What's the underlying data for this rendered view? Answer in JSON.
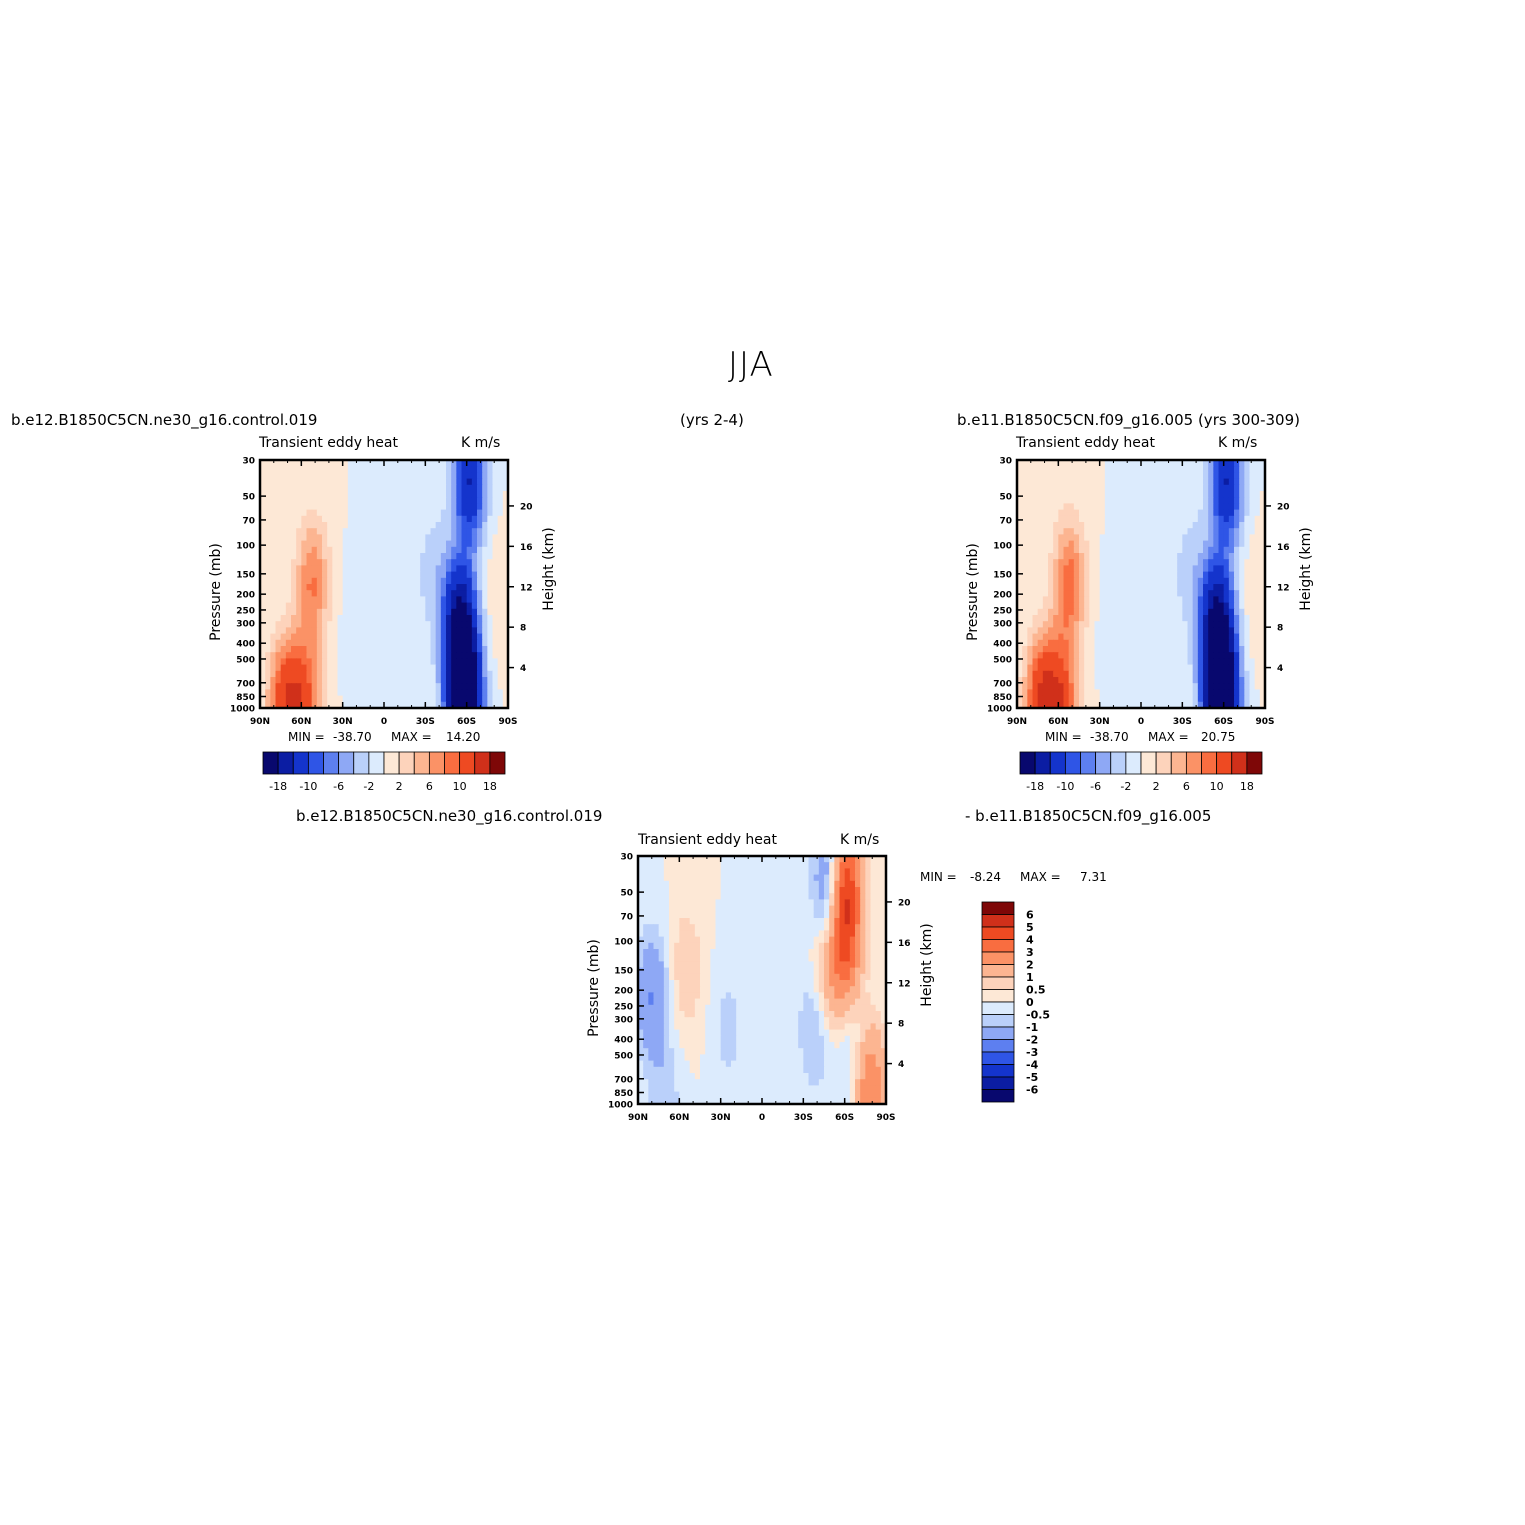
{
  "page": {
    "suptitle": "JJA"
  },
  "labels": {
    "case1": "b.e12.B1850C5CN.ne30_g16.control.019",
    "years1": "(yrs 2-4)",
    "case2": "b.e11.B1850C5CN.f09_g16.005 (yrs 300-309)",
    "diff_case1": "b.e12.B1850C5CN.ne30_g16.control.019",
    "diff_case2": "- b.e11.B1850C5CN.f09_g16.005"
  },
  "colors": {
    "neg": [
      "#08086e",
      "#0b1da3",
      "#1434cc",
      "#2f55e6",
      "#5d7ff0",
      "#8ea8f5",
      "#bad0fa",
      "#dcebfd"
    ],
    "pos": [
      "#fde8d6",
      "#fdd3bb",
      "#fcb591",
      "#fb9266",
      "#f96d40",
      "#ee4a22",
      "#d0301a",
      "#a8180f",
      "#7e0707"
    ]
  },
  "chart_data": [
    {
      "type": "heatmap",
      "id": "control",
      "title": "Transient eddy heat",
      "units": "K m/s",
      "ylabel": "Pressure (mb)",
      "ylabel_right": "Height (km)",
      "x_ticks": [
        "90N",
        "60N",
        "30N",
        "0",
        "30S",
        "60S",
        "90S"
      ],
      "y_ticks": [
        30,
        50,
        70,
        100,
        150,
        200,
        250,
        300,
        400,
        500,
        700,
        850,
        1000
      ],
      "height_ticks": [
        4,
        8,
        12,
        16,
        20
      ],
      "min_label": "MIN =",
      "min_value": "-38.70",
      "max_label": "MAX =",
      "max_value": "14.20",
      "colorbar_labels": [
        "-18",
        "-10",
        "-6",
        "-2",
        "2",
        "6",
        "10",
        "18"
      ],
      "features": [
        {
          "lat": -58,
          "p": 900,
          "value": -30
        },
        {
          "lat": -55,
          "p": 300,
          "value": -18
        },
        {
          "lat": -62,
          "p": 40,
          "value": -14
        },
        {
          "lat": -35,
          "p": 150,
          "value": -3
        },
        {
          "lat": 52,
          "p": 170,
          "value": 8
        },
        {
          "lat": 72,
          "p": 950,
          "value": 12
        },
        {
          "lat": 58,
          "p": 950,
          "value": 10
        },
        {
          "lat": 20,
          "p": 300,
          "value": -1
        },
        {
          "lat": -85,
          "p": 210,
          "value": 2
        }
      ]
    },
    {
      "type": "heatmap",
      "id": "reference",
      "title": "Transient eddy heat",
      "units": "K m/s",
      "ylabel": "Pressure (mb)",
      "ylabel_right": "Height (km)",
      "x_ticks": [
        "90N",
        "60N",
        "30N",
        "0",
        "30S",
        "60S",
        "90S"
      ],
      "y_ticks": [
        30,
        50,
        70,
        100,
        150,
        200,
        250,
        300,
        400,
        500,
        700,
        850,
        1000
      ],
      "height_ticks": [
        4,
        8,
        12,
        16,
        20
      ],
      "min_label": "MIN =",
      "min_value": "-38.70",
      "max_label": "MAX =",
      "max_value": "20.75",
      "colorbar_labels": [
        "-18",
        "-10",
        "-6",
        "-2",
        "2",
        "6",
        "10",
        "18"
      ],
      "features": [
        {
          "lat": -58,
          "p": 900,
          "value": -30
        },
        {
          "lat": -55,
          "p": 300,
          "value": -18
        },
        {
          "lat": -62,
          "p": 40,
          "value": -14
        },
        {
          "lat": -35,
          "p": 150,
          "value": -3
        },
        {
          "lat": 52,
          "p": 170,
          "value": 9
        },
        {
          "lat": 72,
          "p": 950,
          "value": 14
        },
        {
          "lat": 58,
          "p": 950,
          "value": 11
        },
        {
          "lat": 20,
          "p": 300,
          "value": -1
        },
        {
          "lat": -85,
          "p": 210,
          "value": 2
        }
      ]
    },
    {
      "type": "heatmap",
      "id": "difference",
      "title": "Transient eddy heat",
      "units": "K m/s",
      "ylabel": "Pressure (mb)",
      "ylabel_right": "Height (km)",
      "x_ticks": [
        "90N",
        "60N",
        "30N",
        "0",
        "30S",
        "60S",
        "90S"
      ],
      "y_ticks": [
        30,
        50,
        70,
        100,
        150,
        200,
        250,
        300,
        400,
        500,
        700,
        850,
        1000
      ],
      "height_ticks": [
        4,
        8,
        12,
        16,
        20
      ],
      "min_label": "MIN =",
      "min_value": "-8.24",
      "max_label": "MAX =",
      "max_value": "7.31",
      "colorbar_labels": [
        "6",
        "5",
        "4",
        "3",
        "2",
        "1",
        "0.5",
        "0",
        "-0.5",
        "-1",
        "-2",
        "-3",
        "-4",
        "-5",
        "-6"
      ],
      "features": [
        {
          "lat": -60,
          "p": 45,
          "value": 5
        },
        {
          "lat": -60,
          "p": 120,
          "value": 3
        },
        {
          "lat": -45,
          "p": 200,
          "value": 2
        },
        {
          "lat": -50,
          "p": 45,
          "value": -3
        },
        {
          "lat": -40,
          "p": 300,
          "value": -2
        },
        {
          "lat": 80,
          "p": 220,
          "value": -2
        },
        {
          "lat": 55,
          "p": 150,
          "value": 1
        },
        {
          "lat": -78,
          "p": 800,
          "value": 3
        },
        {
          "lat": -65,
          "p": 500,
          "value": -1
        },
        {
          "lat": 25,
          "p": 350,
          "value": -0.7
        },
        {
          "lat": 70,
          "p": 950,
          "value": -0.8
        }
      ]
    }
  ]
}
